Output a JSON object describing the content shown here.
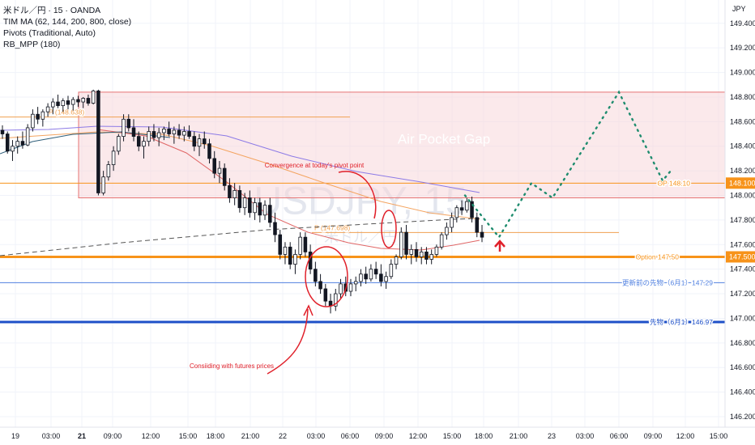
{
  "header": {
    "symbol_line": "米ドル／円 · 15 · OANDA",
    "indicator_1": "TIM MA (62, 144, 200, 800, close)",
    "indicator_2": "Pivots (Traditional, Auto)",
    "indicator_3": "RB_MPP (180)"
  },
  "currency": "JPY",
  "watermark": {
    "text": "USDJPY, 15",
    "sub": "米ドル／円"
  },
  "colors": {
    "up": "#131722",
    "down": "#131722",
    "zone_fill": "#f8d7da",
    "zone_stroke": "#e57373",
    "pivot": "#f0a050",
    "option": "#f7931a",
    "blue_line": "#5080e0",
    "futures": "#1e50c8",
    "ma_purple": "#8c7ae6",
    "ma_orange": "#f4a460",
    "ma_red": "#e06666",
    "ma_dark": "#2f5f7a",
    "forecast": "#1e8c6e",
    "annotation": "#e0202a",
    "grid": "#f0f3fa"
  },
  "chart_data": {
    "type": "candlestick",
    "ylim": [
      146.2,
      149.55
    ],
    "y_ticks": [
      "149.400",
      "149.200",
      "149.000",
      "148.800",
      "148.600",
      "148.400",
      "148.200",
      "148.000",
      "147.800",
      "147.600",
      "147.400",
      "147.200",
      "147.000",
      "146.800",
      "146.600",
      "146.400",
      "146.200"
    ],
    "x_ticks": [
      "19",
      "03:00",
      "21",
      "09:00",
      "12:00",
      "15:00",
      "18:00",
      "21:00",
      "22",
      "03:00",
      "06:00",
      "09:00",
      "12:00",
      "15:00",
      "18:00",
      "21:00",
      "23",
      "03:00",
      "06:00",
      "09:00",
      "12:00",
      "15:00"
    ],
    "x_ticks_bold": [
      "21"
    ],
    "candles": [
      [
        148.53,
        148.57,
        148.46,
        148.5
      ],
      [
        148.5,
        148.52,
        148.34,
        148.36
      ],
      [
        148.36,
        148.45,
        148.28,
        148.4
      ],
      [
        148.4,
        148.48,
        148.34,
        148.44
      ],
      [
        148.44,
        148.52,
        148.38,
        148.41
      ],
      [
        148.41,
        148.58,
        148.4,
        148.55
      ],
      [
        148.55,
        148.7,
        148.52,
        148.66
      ],
      [
        148.66,
        148.72,
        148.58,
        148.62
      ],
      [
        148.62,
        148.7,
        148.56,
        148.68
      ],
      [
        148.68,
        148.75,
        148.64,
        148.72
      ],
      [
        148.72,
        148.79,
        148.66,
        148.76
      ],
      [
        148.76,
        148.82,
        148.71,
        148.73
      ],
      [
        148.73,
        148.79,
        148.68,
        148.77
      ],
      [
        148.77,
        148.81,
        148.7,
        148.74
      ],
      [
        148.74,
        148.8,
        148.69,
        148.78
      ],
      [
        148.78,
        148.81,
        148.72,
        148.76
      ],
      [
        148.76,
        148.8,
        148.71,
        148.79
      ],
      [
        148.79,
        148.82,
        148.73,
        148.75
      ],
      [
        148.75,
        148.86,
        148.74,
        148.85
      ],
      [
        148.85,
        148.86,
        148.0,
        148.02
      ],
      [
        148.02,
        148.2,
        148.0,
        148.15
      ],
      [
        148.15,
        148.28,
        148.12,
        148.25
      ],
      [
        148.25,
        148.4,
        148.2,
        148.36
      ],
      [
        148.36,
        148.5,
        148.33,
        148.48
      ],
      [
        148.48,
        148.66,
        148.44,
        148.62
      ],
      [
        148.62,
        148.66,
        148.52,
        148.55
      ],
      [
        148.55,
        148.62,
        148.44,
        148.48
      ],
      [
        148.48,
        148.52,
        148.36,
        148.4
      ],
      [
        148.4,
        148.48,
        148.3,
        148.44
      ],
      [
        148.44,
        148.56,
        148.4,
        148.52
      ],
      [
        148.52,
        148.58,
        148.44,
        148.47
      ],
      [
        148.47,
        148.55,
        148.4,
        148.51
      ],
      [
        148.51,
        148.56,
        148.45,
        148.54
      ],
      [
        148.54,
        148.6,
        148.48,
        148.5
      ],
      [
        148.5,
        148.56,
        148.42,
        148.53
      ],
      [
        148.53,
        148.58,
        148.46,
        148.49
      ],
      [
        148.49,
        148.56,
        148.44,
        148.52
      ],
      [
        148.52,
        148.57,
        148.46,
        148.48
      ],
      [
        148.48,
        148.52,
        148.36,
        148.4
      ],
      [
        148.4,
        148.5,
        148.32,
        148.46
      ],
      [
        148.46,
        148.52,
        148.38,
        148.42
      ],
      [
        148.42,
        148.46,
        148.26,
        148.3
      ],
      [
        148.3,
        148.36,
        148.14,
        148.18
      ],
      [
        148.18,
        148.28,
        148.1,
        148.22
      ],
      [
        148.22,
        148.26,
        148.04,
        148.08
      ],
      [
        148.08,
        148.14,
        147.94,
        147.98
      ],
      [
        147.98,
        148.1,
        147.92,
        148.04
      ],
      [
        148.04,
        148.08,
        147.86,
        147.9
      ],
      [
        147.9,
        148.02,
        147.84,
        147.98
      ],
      [
        147.98,
        148.04,
        147.82,
        147.86
      ],
      [
        147.86,
        147.98,
        147.8,
        147.94
      ],
      [
        147.94,
        147.98,
        147.78,
        147.84
      ],
      [
        147.84,
        147.96,
        147.8,
        147.92
      ],
      [
        147.92,
        147.98,
        147.74,
        147.78
      ],
      [
        147.78,
        147.86,
        147.62,
        147.68
      ],
      [
        147.68,
        147.72,
        147.48,
        147.52
      ],
      [
        147.52,
        147.62,
        147.44,
        147.58
      ],
      [
        147.58,
        147.62,
        147.4,
        147.44
      ],
      [
        147.44,
        147.56,
        147.36,
        147.52
      ],
      [
        147.52,
        147.7,
        147.48,
        147.66
      ],
      [
        147.66,
        147.7,
        147.5,
        147.54
      ],
      [
        147.54,
        147.6,
        147.36,
        147.4
      ],
      [
        147.4,
        147.46,
        147.26,
        147.3
      ],
      [
        147.3,
        147.36,
        147.2,
        147.24
      ],
      [
        147.24,
        147.28,
        147.1,
        147.14
      ],
      [
        147.14,
        147.2,
        147.04,
        147.1
      ],
      [
        147.1,
        147.24,
        147.06,
        147.2
      ],
      [
        147.2,
        147.32,
        147.16,
        147.28
      ],
      [
        147.28,
        147.34,
        147.18,
        147.22
      ],
      [
        147.22,
        147.32,
        147.18,
        147.28
      ],
      [
        147.28,
        147.34,
        147.22,
        147.3
      ],
      [
        147.3,
        147.4,
        147.26,
        147.36
      ],
      [
        147.36,
        147.42,
        147.28,
        147.32
      ],
      [
        147.32,
        147.44,
        147.3,
        147.4
      ],
      [
        147.4,
        147.46,
        147.32,
        147.36
      ],
      [
        147.36,
        147.44,
        147.26,
        147.3
      ],
      [
        147.3,
        147.38,
        147.24,
        147.34
      ],
      [
        147.34,
        147.48,
        147.32,
        147.44
      ],
      [
        147.44,
        147.52,
        147.4,
        147.5
      ],
      [
        147.5,
        147.74,
        147.48,
        147.7
      ],
      [
        147.7,
        147.76,
        147.48,
        147.52
      ],
      [
        147.52,
        147.6,
        147.44,
        147.56
      ],
      [
        147.56,
        147.62,
        147.46,
        147.5
      ],
      [
        147.5,
        147.58,
        147.44,
        147.54
      ],
      [
        147.54,
        147.58,
        147.44,
        147.48
      ],
      [
        147.48,
        147.56,
        147.44,
        147.52
      ],
      [
        147.52,
        147.6,
        147.5,
        147.58
      ],
      [
        147.58,
        147.7,
        147.56,
        147.68
      ],
      [
        147.68,
        147.78,
        147.64,
        147.74
      ],
      [
        147.74,
        147.86,
        147.7,
        147.82
      ],
      [
        147.82,
        147.92,
        147.78,
        147.9
      ],
      [
        147.9,
        147.96,
        147.84,
        147.88
      ],
      [
        147.88,
        147.98,
        147.86,
        147.95
      ],
      [
        147.95,
        147.99,
        147.78,
        147.82
      ],
      [
        147.82,
        147.86,
        147.66,
        147.7
      ],
      [
        147.7,
        147.76,
        147.62,
        147.66
      ]
    ],
    "horizontal_lines": [
      {
        "label": "P (148.638)",
        "value": 148.638
      },
      {
        "label": "P (147.698)",
        "value": 147.698
      },
      {
        "label": "OP 148.10",
        "value": 148.1,
        "price_tag": "148.100"
      },
      {
        "label": "Option 147.50",
        "value": 147.5,
        "price_tag": "147.500"
      },
      {
        "label": "更新前の先物（6月1）147.29",
        "value": 147.29
      },
      {
        "label": "先物（6月1）146.97",
        "value": 146.97
      }
    ],
    "zone": {
      "label": "Air Pocket Gap",
      "top": 148.84,
      "bottom": 147.98
    },
    "forecast_path": [
      148.0,
      147.66,
      148.1,
      147.98,
      148.84,
      148.12,
      148.2
    ],
    "annotations": [
      {
        "text": "Convergence at today's pivot point"
      },
      {
        "text": "Consiiding with futures prices"
      }
    ]
  }
}
